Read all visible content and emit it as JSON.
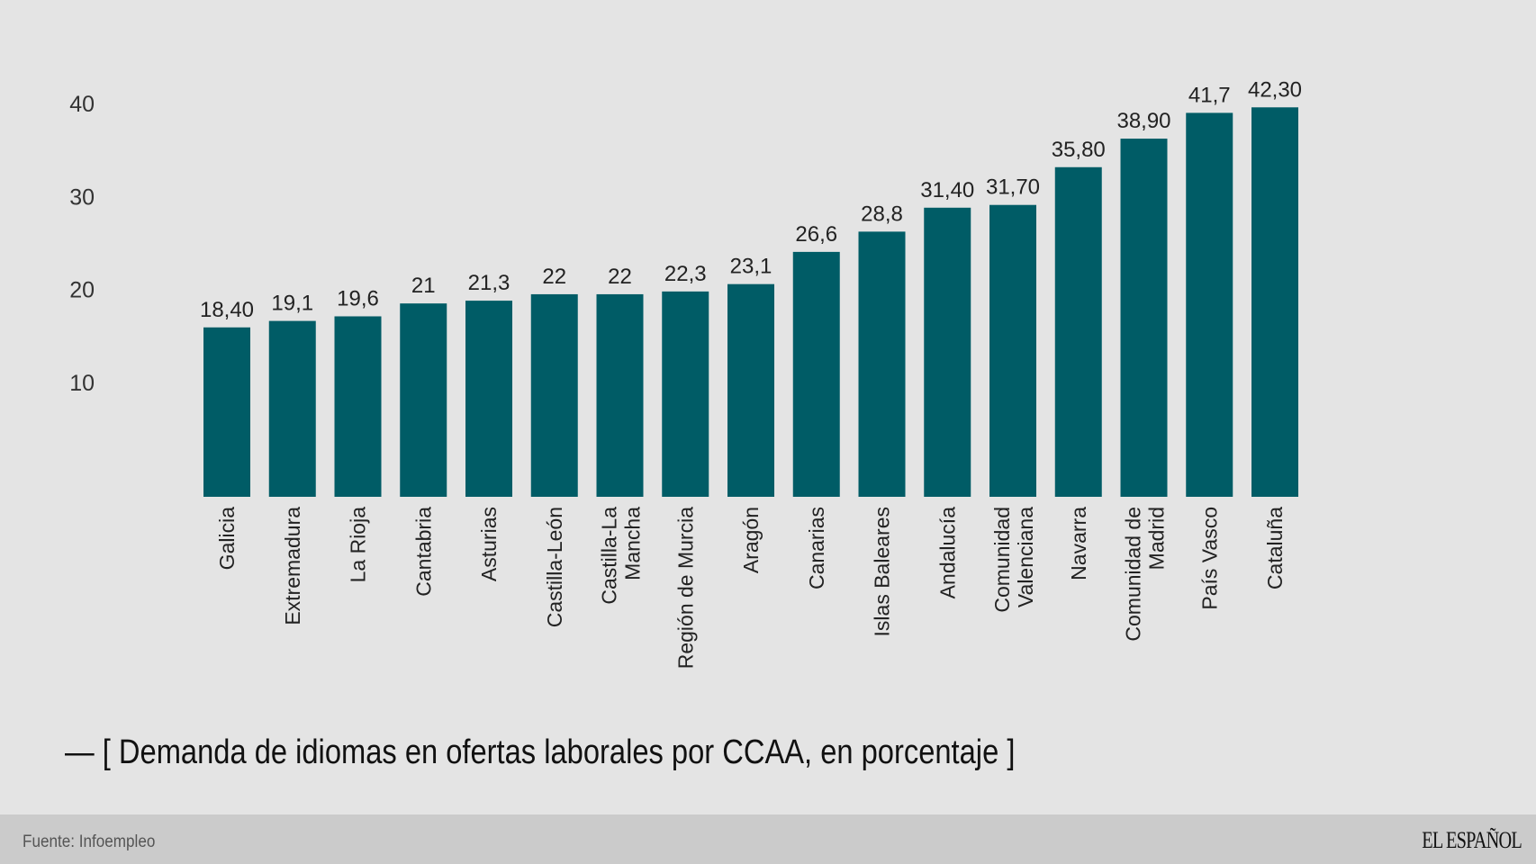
{
  "chart_data": {
    "type": "bar",
    "title": "— [ Demanda de idiomas en ofertas laborales por CCAA, en porcentaje ]",
    "xlabel": "",
    "ylabel": "",
    "ylim": [
      0,
      42.3
    ],
    "yticks": [
      "10",
      "20",
      "30",
      "40"
    ],
    "grid": false,
    "bar_color": "#005c66",
    "categories": [
      "Galicia",
      "Extremadura",
      "La Rioja",
      "Cantabria",
      "Asturias",
      "Castilla-León",
      "Castilla-La Mancha",
      "Región de Murcia",
      "Aragón",
      "Canarias",
      "Islas Baleares",
      "Andalucía",
      "Comunidad Valenciana",
      "Navarra",
      "Comunidad de Madrid",
      "País Vasco",
      "Cataluña"
    ],
    "category_lines": [
      [
        "Galicia"
      ],
      [
        "Extremadura"
      ],
      [
        "La Rioja"
      ],
      [
        "Cantabria"
      ],
      [
        "Asturias"
      ],
      [
        "Castilla-León"
      ],
      [
        "Castilla-La",
        "Mancha"
      ],
      [
        "Región de Murcia"
      ],
      [
        "Aragón"
      ],
      [
        "Canarias"
      ],
      [
        "Islas Baleares"
      ],
      [
        "Andalucía"
      ],
      [
        "Comunidad",
        "Valenciana"
      ],
      [
        "Navarra"
      ],
      [
        "Comunidad de",
        "Madrid"
      ],
      [
        "País Vasco"
      ],
      [
        "Cataluña"
      ]
    ],
    "values": [
      18.4,
      19.1,
      19.6,
      21,
      21.3,
      22,
      22,
      22.3,
      23.1,
      26.6,
      28.8,
      31.4,
      31.7,
      35.8,
      38.9,
      41.7,
      42.3
    ],
    "data_labels": [
      "18,40",
      "19,1",
      "19,6",
      "21",
      "21,3",
      "22",
      "22",
      "22,3",
      "23,1",
      "26,6",
      "28,8",
      "31,40",
      "31,70",
      "35,80",
      "38,90",
      "41,7",
      "42,30"
    ]
  },
  "footer": {
    "source": "Fuente: Infoempleo",
    "logo": "EL ESPAÑOL"
  }
}
